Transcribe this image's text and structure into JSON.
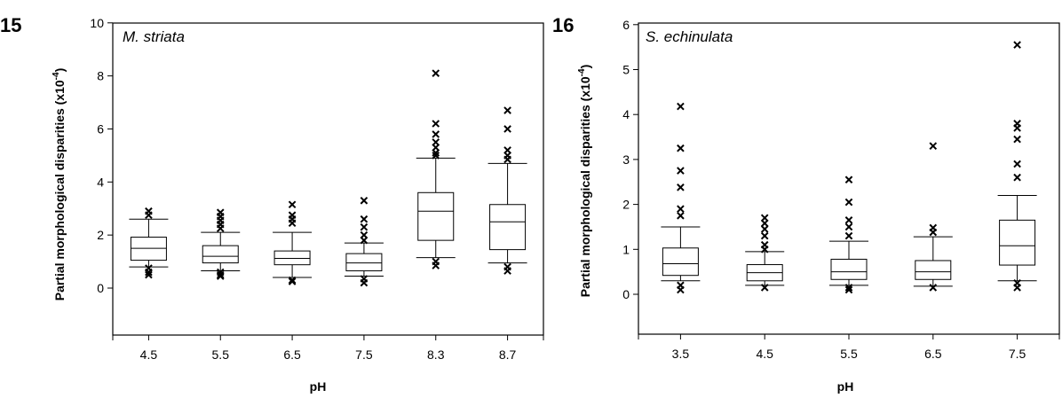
{
  "chart_data": [
    {
      "type": "box",
      "panel_label": "15",
      "species": "M. striata",
      "xlabel": "pH",
      "ylabel": "Partial morphological disparities (x10",
      "ylabel_exp": "-4",
      "ylabel_close": ")",
      "ylim": [
        -1.2,
        10
      ],
      "yticks": [
        "0",
        "2",
        "4",
        "6",
        "8",
        "10"
      ],
      "categories": [
        "4.5",
        "5.5",
        "6.5",
        "7.5",
        "8.3",
        "8.7"
      ],
      "boxes": [
        {
          "x": "4.5",
          "min": 0.8,
          "q1": 1.05,
          "median": 1.5,
          "q3": 1.92,
          "max": 2.6,
          "outliers": [
            2.9,
            2.75,
            0.75,
            0.6,
            0.5
          ]
        },
        {
          "x": "5.5",
          "min": 0.65,
          "q1": 0.95,
          "median": 1.2,
          "q3": 1.6,
          "max": 2.1,
          "outliers": [
            2.85,
            2.7,
            2.55,
            2.4,
            2.25,
            0.6,
            0.5,
            0.45
          ]
        },
        {
          "x": "6.5",
          "min": 0.4,
          "q1": 0.88,
          "median": 1.12,
          "q3": 1.4,
          "max": 2.1,
          "outliers": [
            3.15,
            2.75,
            2.6,
            2.45,
            0.3,
            0.25
          ]
        },
        {
          "x": "7.5",
          "min": 0.45,
          "q1": 0.65,
          "median": 0.95,
          "q3": 1.3,
          "max": 1.7,
          "outliers": [
            3.3,
            2.6,
            2.3,
            2.0,
            1.8,
            0.35,
            0.2
          ]
        },
        {
          "x": "8.3",
          "min": 1.15,
          "q1": 1.8,
          "median": 2.9,
          "q3": 3.6,
          "max": 4.9,
          "outliers": [
            8.1,
            6.2,
            5.8,
            5.5,
            5.3,
            5.1,
            5.0,
            1.0,
            0.85
          ]
        },
        {
          "x": "8.7",
          "min": 0.95,
          "q1": 1.45,
          "median": 2.5,
          "q3": 3.15,
          "max": 4.7,
          "outliers": [
            6.7,
            6.0,
            5.2,
            5.0,
            4.85,
            0.8,
            0.65
          ]
        }
      ]
    },
    {
      "type": "box",
      "panel_label": "16",
      "species": "S. echinulata",
      "xlabel": "pH",
      "ylabel": "Partial morphological disparities (x10",
      "ylabel_exp": "-4",
      "ylabel_close": ")",
      "ylim": [
        -0.9,
        6
      ],
      "yticks": [
        "0",
        "1",
        "2",
        "3",
        "4",
        "5",
        "6"
      ],
      "categories": [
        "3.5",
        "4.5",
        "5.5",
        "6.5",
        "7.5"
      ],
      "boxes": [
        {
          "x": "3.5",
          "min": 0.3,
          "q1": 0.42,
          "median": 0.68,
          "q3": 1.03,
          "max": 1.5,
          "outliers": [
            4.18,
            3.25,
            2.75,
            2.38,
            1.9,
            1.75,
            0.2,
            0.1
          ]
        },
        {
          "x": "4.5",
          "min": 0.2,
          "q1": 0.3,
          "median": 0.48,
          "q3": 0.66,
          "max": 0.95,
          "outliers": [
            1.7,
            1.58,
            1.45,
            1.3,
            1.1,
            1.0,
            0.15
          ]
        },
        {
          "x": "5.5",
          "min": 0.2,
          "q1": 0.33,
          "median": 0.5,
          "q3": 0.78,
          "max": 1.18,
          "outliers": [
            2.55,
            2.05,
            1.65,
            1.5,
            1.3,
            0.15,
            0.1
          ]
        },
        {
          "x": "6.5",
          "min": 0.18,
          "q1": 0.33,
          "median": 0.5,
          "q3": 0.75,
          "max": 1.28,
          "outliers": [
            3.3,
            1.48,
            1.38,
            0.15
          ]
        },
        {
          "x": "7.5",
          "min": 0.3,
          "q1": 0.65,
          "median": 1.08,
          "q3": 1.65,
          "max": 2.2,
          "outliers": [
            5.55,
            3.8,
            3.7,
            3.45,
            2.9,
            2.6,
            0.25,
            0.15
          ]
        }
      ]
    }
  ]
}
